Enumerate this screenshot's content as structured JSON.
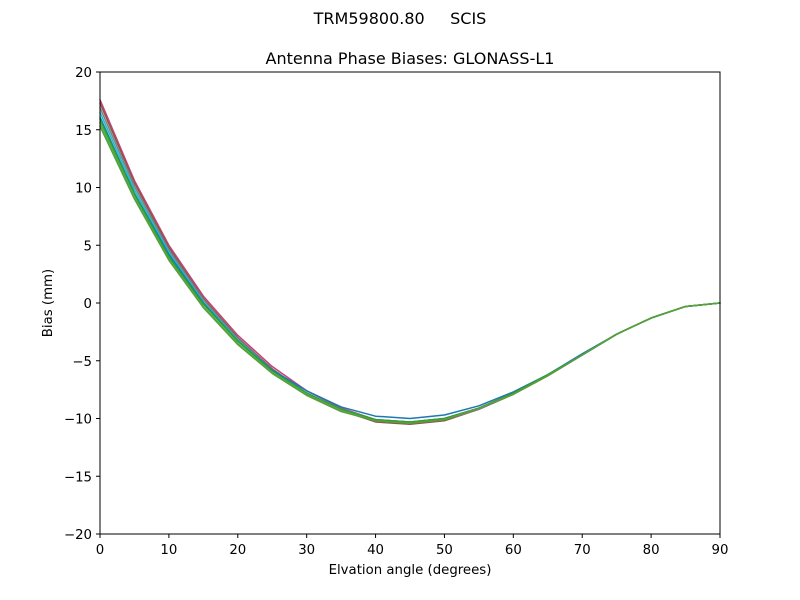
{
  "figure": {
    "suptitle": "TRM59800.80     SCIS"
  },
  "chart_data": {
    "type": "line",
    "title": "Antenna Phase Biases: GLONASS-L1",
    "xlabel": "Elvation angle (degrees)",
    "ylabel": "Bias (mm)",
    "xlim": [
      0,
      90
    ],
    "ylim": [
      -20,
      20
    ],
    "xticks": [
      0,
      10,
      20,
      30,
      40,
      50,
      60,
      70,
      80,
      90
    ],
    "xtick_labels": [
      "0",
      "10",
      "20",
      "30",
      "40",
      "50",
      "60",
      "70",
      "80",
      "90"
    ],
    "yticks": [
      -20,
      -15,
      -10,
      -5,
      0,
      5,
      10,
      15,
      20
    ],
    "ytick_labels": [
      "−20",
      "−15",
      "−10",
      "−5",
      "0",
      "5",
      "10",
      "15",
      "20"
    ],
    "grid": false,
    "legend": "none",
    "x": [
      0,
      5,
      10,
      15,
      20,
      25,
      30,
      35,
      40,
      45,
      50,
      55,
      60,
      65,
      70,
      75,
      80,
      85,
      90
    ],
    "series": [
      {
        "name": "channel-1",
        "color": "#c2437a",
        "values": [
          17.6,
          10.6,
          5.0,
          0.6,
          -2.8,
          -5.5,
          -7.6,
          -9.1,
          -10.1,
          -10.3,
          -10.0,
          -9.1,
          -7.9,
          -6.3,
          -4.5,
          -2.7,
          -1.3,
          -0.3,
          0.0
        ]
      },
      {
        "name": "channel-2",
        "color": "#8c564b",
        "values": [
          17.3,
          10.4,
          4.8,
          0.4,
          -3.0,
          -5.7,
          -7.8,
          -9.3,
          -10.3,
          -10.5,
          -10.2,
          -9.2,
          -7.9,
          -6.3,
          -4.5,
          -2.7,
          -1.3,
          -0.3,
          0.0
        ]
      },
      {
        "name": "channel-3",
        "color": "#7f7f7f",
        "values": [
          16.9,
          10.1,
          4.6,
          0.3,
          -3.1,
          -5.8,
          -7.8,
          -9.3,
          -10.2,
          -10.4,
          -10.1,
          -9.2,
          -7.9,
          -6.3,
          -4.5,
          -2.7,
          -1.3,
          -0.3,
          0.0
        ]
      },
      {
        "name": "channel-4",
        "color": "#17becf",
        "values": [
          16.5,
          9.8,
          4.4,
          0.1,
          -3.2,
          -5.8,
          -7.8,
          -9.2,
          -10.1,
          -10.3,
          -10.0,
          -9.1,
          -7.8,
          -6.2,
          -4.5,
          -2.7,
          -1.3,
          -0.3,
          0.0
        ]
      },
      {
        "name": "channel-5",
        "color": "#1f77b4",
        "values": [
          16.1,
          9.5,
          4.2,
          0.0,
          -3.3,
          -5.8,
          -7.6,
          -9.0,
          -9.8,
          -10.0,
          -9.7,
          -8.9,
          -7.7,
          -6.2,
          -4.4,
          -2.7,
          -1.3,
          -0.3,
          0.0
        ]
      },
      {
        "name": "channel-6",
        "color": "#2ca02c",
        "values": [
          15.9,
          9.4,
          4.0,
          -0.1,
          -3.3,
          -5.9,
          -7.8,
          -9.2,
          -10.1,
          -10.3,
          -10.0,
          -9.1,
          -7.8,
          -6.2,
          -4.5,
          -2.7,
          -1.3,
          -0.3,
          0.0
        ]
      },
      {
        "name": "channel-7",
        "color": "#4caf50",
        "values": [
          15.6,
          9.2,
          3.8,
          -0.3,
          -3.5,
          -6.0,
          -7.9,
          -9.3,
          -10.2,
          -10.4,
          -10.1,
          -9.1,
          -7.9,
          -6.3,
          -4.5,
          -2.7,
          -1.3,
          -0.3,
          0.0
        ]
      },
      {
        "name": "channel-8",
        "color": "#5a9e3a",
        "values": [
          15.3,
          9.0,
          3.7,
          -0.4,
          -3.6,
          -6.1,
          -8.0,
          -9.4,
          -10.2,
          -10.4,
          -10.1,
          -9.1,
          -7.9,
          -6.3,
          -4.5,
          -2.7,
          -1.3,
          -0.3,
          0.0
        ]
      }
    ]
  }
}
